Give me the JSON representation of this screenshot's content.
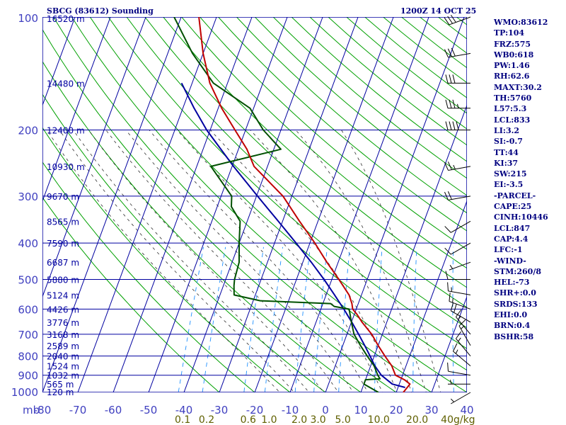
{
  "header": {
    "station": "SBCG (83612) Sounding",
    "time": "1200Z 14 OCT 25"
  },
  "params": [
    "WMO:83612",
    "TP:104",
    "FRZ:575",
    "WB0:618",
    "PW:1.46",
    "RH:62.6",
    "MAXT:30.2",
    "TH:5760",
    "L57:5.3",
    "LCL:833",
    "LI:3.2",
    "SI:-0.7",
    "TT:44",
    "KI:37",
    "SW:215",
    "EI:-3.5",
    "-PARCEL-",
    "CAPE:25",
    "CINH:10446",
    "LCL:847",
    "CAP:4.4",
    "LFC:-1",
    "-WIND-",
    "STM:260/8",
    "HEL:-73",
    "SHR+:0.0",
    "SRDS:133",
    "EHI:0.0",
    "BRN:0.4",
    "BSHR:58"
  ],
  "colors": {
    "grid": "#0000a0",
    "temp": "#c00000",
    "dewpoint": "#005000",
    "parcel": "#0000a0",
    "dry_adiabat": "#00a000",
    "moist_adiabat": "#303030",
    "mixing_ratio": "#1e90ff",
    "axis_label": "#4040c0",
    "mix_label": "#606000",
    "wind": "#000000"
  },
  "chart_data": {
    "type": "skew-t",
    "title": "SBCG (83612) Sounding",
    "x_unit_label": "mb",
    "pressure_levels": [
      100,
      200,
      300,
      400,
      500,
      600,
      700,
      800,
      900,
      1000
    ],
    "pressure_tick_labels": [
      "100",
      "200",
      "300",
      "400",
      "500",
      "600",
      "700",
      "800",
      "900",
      "1000"
    ],
    "temperature_ticks": [
      -80,
      -70,
      -60,
      -50,
      -40,
      -30,
      -20,
      -10,
      0,
      10,
      20,
      30,
      40
    ],
    "temperature_tick_labels": [
      "-80",
      "-70",
      "-60",
      "-50",
      "-40",
      "-30",
      "-20",
      "-10",
      "0",
      "10",
      "20",
      "30",
      "40"
    ],
    "mixing_ratio_labels": [
      {
        "text": "0.1",
        "w": 0.1
      },
      {
        "text": "0.2",
        "w": 0.2
      },
      {
        "text": "0.6",
        "w": 0.6
      },
      {
        "text": "1.0",
        "w": 1.0
      },
      {
        "text": "2.0",
        "w": 2.0
      },
      {
        "text": "3.0",
        "w": 3.0
      },
      {
        "text": "5.0",
        "w": 5.0
      },
      {
        "text": "10.0",
        "w": 10.0
      },
      {
        "text": "20.0",
        "w": 20.0
      },
      {
        "text": "40g/kg",
        "w": 40.0
      }
    ],
    "height_labels": [
      {
        "p": 1000,
        "text": "120 m"
      },
      {
        "p": 950,
        "text": "565 m"
      },
      {
        "p": 900,
        "text": "1032 m"
      },
      {
        "p": 850,
        "text": "1524 m"
      },
      {
        "p": 800,
        "text": "2040 m"
      },
      {
        "p": 750,
        "text": "2589 m"
      },
      {
        "p": 700,
        "text": "3168 m"
      },
      {
        "p": 650,
        "text": "3776 m"
      },
      {
        "p": 600,
        "text": "4426 m"
      },
      {
        "p": 550,
        "text": "5124 m"
      },
      {
        "p": 500,
        "text": "5880 m"
      },
      {
        "p": 450,
        "text": "6687 m"
      },
      {
        "p": 400,
        "text": "7590 m"
      },
      {
        "p": 350,
        "text": "8565 m"
      },
      {
        "p": 300,
        "text": "9670 m"
      },
      {
        "p": 250,
        "text": "10930 m"
      },
      {
        "p": 200,
        "text": "12400 m"
      },
      {
        "p": 150,
        "text": "14480 m"
      },
      {
        "p": 100,
        "text": "16520 m"
      }
    ],
    "temperature_profile": [
      [
        1000,
        22.0
      ],
      [
        950,
        23.0
      ],
      [
        925,
        21.0
      ],
      [
        900,
        18.0
      ],
      [
        850,
        16.0
      ],
      [
        800,
        13.0
      ],
      [
        750,
        10.0
      ],
      [
        700,
        7.0
      ],
      [
        650,
        3.0
      ],
      [
        620,
        0.8
      ],
      [
        600,
        -1.0
      ],
      [
        580,
        -1.8
      ],
      [
        550,
        -3.5
      ],
      [
        500,
        -8.0
      ],
      [
        450,
        -13.2
      ],
      [
        400,
        -18.6
      ],
      [
        350,
        -25.2
      ],
      [
        300,
        -32.5
      ],
      [
        250,
        -43.8
      ],
      [
        225,
        -47.6
      ],
      [
        200,
        -53.0
      ],
      [
        175,
        -59.0
      ],
      [
        150,
        -65.0
      ],
      [
        125,
        -70.0
      ],
      [
        100,
        -75.0
      ]
    ],
    "dewpoint_profile": [
      [
        1000,
        15.0
      ],
      [
        950,
        10.0
      ],
      [
        925,
        10.0
      ],
      [
        920,
        14.0
      ],
      [
        900,
        13.0
      ],
      [
        850,
        11.0
      ],
      [
        800,
        8.0
      ],
      [
        750,
        5.0
      ],
      [
        700,
        2.0
      ],
      [
        650,
        0.0
      ],
      [
        600,
        -2.0
      ],
      [
        590,
        -6.5
      ],
      [
        580,
        -7.8
      ],
      [
        570,
        -28.0
      ],
      [
        550,
        -36.0
      ],
      [
        520,
        -37.0
      ],
      [
        500,
        -37.5
      ],
      [
        450,
        -38.0
      ],
      [
        400,
        -40.0
      ],
      [
        350,
        -42.0
      ],
      [
        320,
        -46.0
      ],
      [
        300,
        -47.0
      ],
      [
        250,
        -56.0
      ],
      [
        225,
        -38.0
      ],
      [
        200,
        -45.0
      ],
      [
        175,
        -51.0
      ],
      [
        150,
        -64.0
      ],
      [
        125,
        -73.0
      ],
      [
        100,
        -82.0
      ]
    ],
    "parcel_profile": [
      [
        970,
        22.0
      ],
      [
        950,
        18.0
      ],
      [
        900,
        14.0
      ],
      [
        850,
        11.2
      ],
      [
        800,
        8.8
      ],
      [
        750,
        6.2
      ],
      [
        700,
        3.3
      ],
      [
        650,
        0.1
      ],
      [
        600,
        -3.5
      ],
      [
        550,
        -7.6
      ],
      [
        500,
        -12.2
      ],
      [
        450,
        -17.6
      ],
      [
        400,
        -23.9
      ],
      [
        350,
        -31.2
      ],
      [
        300,
        -39.7
      ],
      [
        250,
        -49.6
      ],
      [
        200,
        -61.0
      ],
      [
        175,
        -66.8
      ],
      [
        150,
        -73.0
      ]
    ],
    "wind_barbs": [
      {
        "p": 1000,
        "dir": 240,
        "spd": 5
      },
      {
        "p": 950,
        "dir": 270,
        "spd": 5
      },
      {
        "p": 900,
        "dir": 280,
        "spd": 10
      },
      {
        "p": 850,
        "dir": 310,
        "spd": 15
      },
      {
        "p": 800,
        "dir": 320,
        "spd": 15
      },
      {
        "p": 750,
        "dir": 330,
        "spd": 15
      },
      {
        "p": 700,
        "dir": 320,
        "spd": 15
      },
      {
        "p": 650,
        "dir": 300,
        "spd": 20
      },
      {
        "p": 600,
        "dir": 290,
        "spd": 15
      },
      {
        "p": 550,
        "dir": 280,
        "spd": 15
      },
      {
        "p": 500,
        "dir": 270,
        "spd": 10
      },
      {
        "p": 450,
        "dir": 250,
        "spd": 5
      },
      {
        "p": 400,
        "dir": 240,
        "spd": 10
      },
      {
        "p": 350,
        "dir": 240,
        "spd": 10
      },
      {
        "p": 300,
        "dir": 260,
        "spd": 20
      },
      {
        "p": 250,
        "dir": 260,
        "spd": 25
      },
      {
        "p": 200,
        "dir": 270,
        "spd": 40
      },
      {
        "p": 175,
        "dir": 270,
        "spd": 35
      },
      {
        "p": 150,
        "dir": 270,
        "spd": 30
      },
      {
        "p": 125,
        "dir": 260,
        "spd": 30
      },
      {
        "p": 100,
        "dir": 250,
        "spd": 30
      }
    ]
  }
}
